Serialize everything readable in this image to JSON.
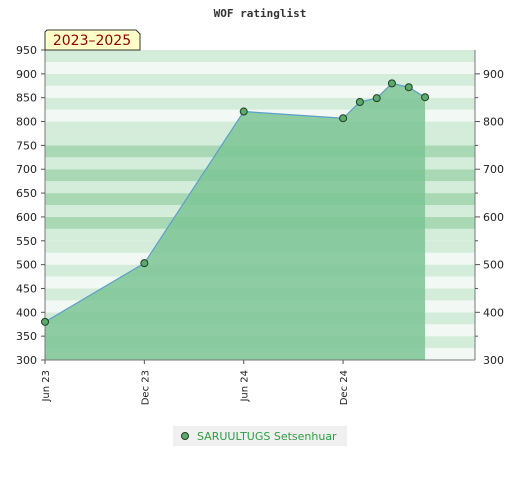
{
  "chart_data": {
    "type": "area",
    "title": "WOF ratinglist",
    "period_label": "2023–2025",
    "xlabel": "",
    "ylabel": "",
    "ylim": [
      300,
      950
    ],
    "y_ticks_left": [
      300,
      350,
      400,
      450,
      500,
      550,
      600,
      650,
      700,
      750,
      800,
      850,
      900,
      950
    ],
    "y_ticks_right": [
      300,
      400,
      500,
      600,
      700,
      800,
      900
    ],
    "x_tick_labels": [
      "Jun 23",
      "Dec 23",
      "Jun 24",
      "Dec 24"
    ],
    "x_tick_dates": [
      "2023-06-01",
      "2023-12-01",
      "2024-06-01",
      "2024-12-01"
    ],
    "xlim": [
      "2023-06-01",
      "2025-08-01"
    ],
    "grid": "horizontal bands",
    "legend_position": "bottom-center",
    "colors": {
      "fill": "#7cc494",
      "line": "#5aa0c8",
      "marker": "#5cab6c",
      "marker_edge": "#1e3d22",
      "band_light": "#f2f8f3",
      "band_mid": "#d4ecda",
      "band_dark": "#a9d9b4",
      "badge_bg": "#ffffc8",
      "badge_text": "#8b0000",
      "legend_bg": "#f0f0f0",
      "legend_text": "#2e9e44"
    },
    "series": [
      {
        "name": "SARUULTUGS Setsenhuar",
        "x": [
          "2023-06-01",
          "2023-12-01",
          "2024-06-01",
          "2024-12-01",
          "2025-01-01",
          "2025-02-01",
          "2025-03-01",
          "2025-04-01",
          "2025-05-01"
        ],
        "y": [
          380,
          503,
          821,
          807,
          841,
          849,
          880,
          872,
          851
        ]
      }
    ]
  }
}
